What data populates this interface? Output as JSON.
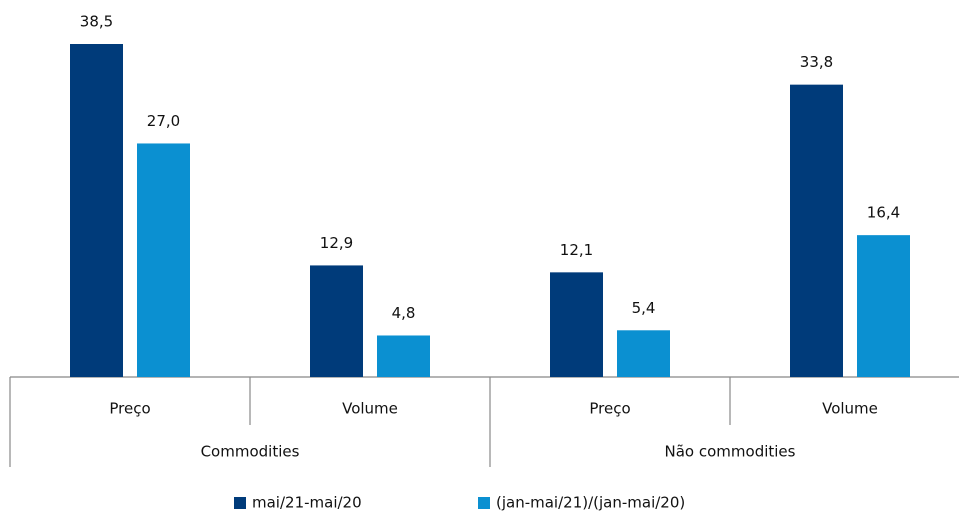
{
  "chart_data": {
    "type": "bar",
    "categories": [
      "Preço",
      "Volume",
      "Preço",
      "Volume"
    ],
    "category_groups": [
      "Commodities",
      "Não commodities"
    ],
    "series": [
      {
        "name": "mai/21-mai/20",
        "color": "#003b7a",
        "values": [
          38.5,
          12.9,
          12.1,
          33.8
        ],
        "value_labels": [
          "38,5",
          "12,9",
          "12,1",
          "33,8"
        ]
      },
      {
        "name": "(jan-mai/21)/(jan-mai/20)",
        "color": "#0b90d1",
        "values": [
          27.0,
          4.8,
          5.4,
          16.4
        ],
        "value_labels": [
          "27,0",
          "4,8",
          "5,4",
          "16,4"
        ]
      }
    ]
  }
}
